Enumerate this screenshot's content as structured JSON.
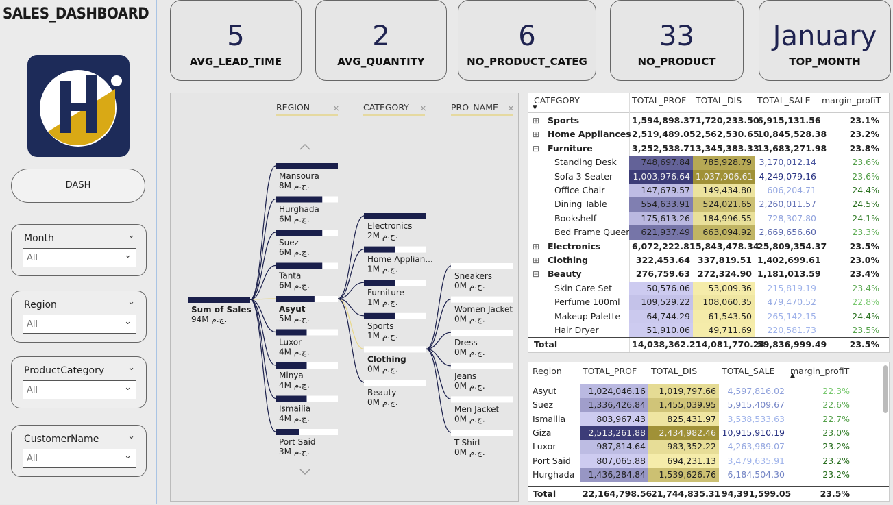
{
  "header": {
    "title": "SALES_DASHBOARD"
  },
  "nav": {
    "button": "DASH"
  },
  "slicers": [
    {
      "label": "Month",
      "value": "All"
    },
    {
      "label": "Region",
      "value": "All"
    },
    {
      "label": "ProductCategory",
      "value": "All"
    },
    {
      "label": "CustomerName",
      "value": "All"
    }
  ],
  "kpis": [
    {
      "value": "5",
      "label": "AVG_LEAD_TIME"
    },
    {
      "value": "2",
      "label": "AVG_QUANTITY"
    },
    {
      "value": "6",
      "label": "NO_PRODUCT_CATEG"
    },
    {
      "value": "33",
      "label": "NO_PRODUCT"
    },
    {
      "value": "January",
      "label": "TOP_MONTH"
    }
  ],
  "decomposition": {
    "levels": [
      "REGION",
      "CATEGORY",
      "PRO_NAME"
    ],
    "root": {
      "name": "Sum of Sales",
      "value": 94,
      "value_label": "94M ج.م."
    },
    "columns": [
      [
        {
          "name": "Mansoura",
          "value": 8,
          "value_label": "8M ج.م."
        },
        {
          "name": "Hurghada",
          "value": 6,
          "value_label": "6M ج.م."
        },
        {
          "name": "Suez",
          "value": 6,
          "value_label": "6M ج.م."
        },
        {
          "name": "Tanta",
          "value": 6,
          "value_label": "6M ج.م."
        },
        {
          "name": "Asyut",
          "value": 5,
          "value_label": "5M ج.م.",
          "selected": true
        },
        {
          "name": "Luxor",
          "value": 4,
          "value_label": "4M ج.م."
        },
        {
          "name": "Minya",
          "value": 4,
          "value_label": "4M ج.م."
        },
        {
          "name": "Ismailia",
          "value": 4,
          "value_label": "4M ج.م."
        },
        {
          "name": "Port Said",
          "value": 3,
          "value_label": "3M ج.م."
        }
      ],
      [
        {
          "name": "Electronics",
          "value": 2,
          "value_label": "2M ج.م."
        },
        {
          "name": "Home Applian...",
          "value": 1,
          "value_label": "1M ج.م."
        },
        {
          "name": "Furniture",
          "value": 1,
          "value_label": "1M ج.م."
        },
        {
          "name": "Sports",
          "value": 1,
          "value_label": "1M ج.م."
        },
        {
          "name": "Clothing",
          "value": 0,
          "value_label": "0M ج.م.",
          "selected": true
        },
        {
          "name": "Beauty",
          "value": 0,
          "value_label": "0M ج.م."
        }
      ],
      [
        {
          "name": "Sneakers",
          "value": 0,
          "value_label": "0M ج.م."
        },
        {
          "name": "Women Jacket",
          "value": 0,
          "value_label": "0M ج.م."
        },
        {
          "name": "Dress",
          "value": 0,
          "value_label": "0M ج.م."
        },
        {
          "name": "Jeans",
          "value": 0,
          "value_label": "0M ج.م."
        },
        {
          "name": "Men Jacket",
          "value": 0,
          "value_label": "0M ج.م."
        },
        {
          "name": "T-Shirt",
          "value": 0,
          "value_label": "0M ج.م."
        }
      ]
    ]
  },
  "category_table": {
    "columns": [
      "CATEGORY",
      "TOTAL_PROF",
      "TOTAL_DIS",
      "TOTAL_SALE",
      "margin_profiT"
    ],
    "rows": [
      {
        "toggle": "⊞",
        "cells": [
          "Sports",
          "1,594,898.37",
          "1,720,233.50",
          "6,915,131.56",
          "23.1%"
        ]
      },
      {
        "toggle": "⊞",
        "cells": [
          "Home Appliances",
          "2,519,489.05",
          "2,562,530.65",
          "10,845,528.38",
          "23.2%"
        ]
      },
      {
        "toggle": "⊟",
        "cells": [
          "Furniture",
          "3,252,538.71",
          "3,345,383.33",
          "13,683,271.98",
          "23.8%"
        ]
      },
      {
        "cells": [
          "Standing Desk",
          "748,697.84",
          "785,928.79",
          "3,170,012.14",
          "23.6%"
        ]
      },
      {
        "cells": [
          "Sofa 3-Seater",
          "1,003,976.64",
          "1,037,906.61",
          "4,249,079.16",
          "23.6%"
        ]
      },
      {
        "cells": [
          "Office Chair",
          "147,679.57",
          "149,434.80",
          "606,204.71",
          "24.4%"
        ]
      },
      {
        "cells": [
          "Dining Table",
          "554,633.91",
          "524,021.65",
          "2,260,011.57",
          "24.5%"
        ]
      },
      {
        "cells": [
          "Bookshelf",
          "175,613.26",
          "184,996.55",
          "728,307.80",
          "24.1%"
        ]
      },
      {
        "cells": [
          "Bed Frame Queen",
          "621,937.49",
          "663,094.92",
          "2,669,656.60",
          "23.3%"
        ]
      },
      {
        "toggle": "⊞",
        "cells": [
          "Electronics",
          "6,072,222.81",
          "5,843,478.34",
          "25,809,354.37",
          "23.5%"
        ]
      },
      {
        "toggle": "⊞",
        "cells": [
          "Clothing",
          "322,453.64",
          "337,819.51",
          "1,402,699.61",
          "23.0%"
        ]
      },
      {
        "toggle": "⊟",
        "cells": [
          "Beauty",
          "276,759.63",
          "272,324.90",
          "1,181,013.59",
          "23.4%"
        ]
      },
      {
        "cells": [
          "Skin Care Set",
          "50,576.06",
          "53,009.36",
          "215,819.19",
          "23.4%"
        ]
      },
      {
        "cells": [
          "Perfume 100ml",
          "109,529.22",
          "108,060.35",
          "479,470.52",
          "22.8%"
        ]
      },
      {
        "cells": [
          "Makeup Palette",
          "64,744.29",
          "61,543.50",
          "265,142.15",
          "24.4%"
        ]
      },
      {
        "cells": [
          "Hair Dryer",
          "51,910.06",
          "49,711.69",
          "220,581.73",
          "23.5%"
        ]
      }
    ],
    "total": [
      "Total",
      "14,038,362.21",
      "14,081,770.24",
      "59,836,999.49",
      "23.5%"
    ]
  },
  "region_table": {
    "columns": [
      "Region",
      "TOTAL_PROF",
      "TOTAL_DIS",
      "TOTAL_SALE",
      "margin_profiT"
    ],
    "rows": [
      {
        "cells": [
          "Asyut",
          "1,024,046.16",
          "1,019,797.66",
          "4,597,816.02",
          "22.3%"
        ]
      },
      {
        "cells": [
          "Suez",
          "1,336,426.84",
          "1,455,039.95",
          "5,915,409.67",
          "22.6%"
        ]
      },
      {
        "cells": [
          "Ismailia",
          "803,967.43",
          "825,431.97",
          "3,538,533.63",
          "22.7%"
        ]
      },
      {
        "cells": [
          "Giza",
          "2,513,261.88",
          "2,434,982.46",
          "10,915,910.19",
          "23.0%"
        ]
      },
      {
        "cells": [
          "Luxor",
          "987,814.64",
          "983,352.22",
          "4,263,989.07",
          "23.2%"
        ]
      },
      {
        "cells": [
          "Port Said",
          "807,065.88",
          "694,231.13",
          "3,479,635.91",
          "23.2%"
        ]
      },
      {
        "cells": [
          "Hurghada",
          "1,436,284.84",
          "1,539,626.76",
          "6,184,504.30",
          "23.2%"
        ]
      }
    ],
    "total": [
      "Total",
      "22,164,798.56",
      "21,744,835.31",
      "94,391,599.05",
      "23.5%"
    ]
  }
}
